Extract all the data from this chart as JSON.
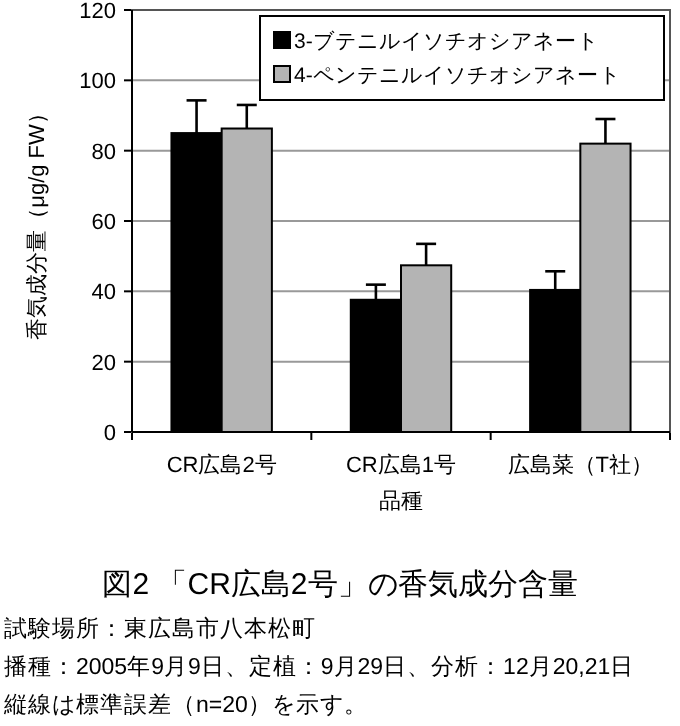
{
  "chart_data": {
    "type": "bar",
    "title": "図2 「CR広島2号」の香気成分含量",
    "xlabel": "品種",
    "ylabel": "香気成分量（μg/g FW）",
    "categories": [
      "CR広島2号",
      "CR広島1号",
      "広島菜（T社）"
    ],
    "series": [
      {
        "name": "3-ブテニルイソチオシアネート",
        "color": "#000000",
        "values": [
          85,
          37.6,
          40.4
        ],
        "errors": [
          [
            85,
            94.3
          ],
          [
            37.6,
            41.9
          ],
          [
            40.4,
            45.7
          ]
        ]
      },
      {
        "name": "4-ペンテニルイソチオシアネート",
        "color": "#b4b4b4",
        "values": [
          86.3,
          47.4,
          82
        ],
        "errors": [
          [
            86.3,
            93
          ],
          [
            47.4,
            53.5
          ],
          [
            82,
            89
          ]
        ]
      }
    ],
    "ylim": [
      0,
      120
    ],
    "yticks": [
      0,
      20,
      40,
      60,
      80,
      100,
      120
    ],
    "grid": "y",
    "legend": "top right",
    "annotations": [
      "試験場所：東広島市八本松町",
      "播種：2005年9月9日、定植：9月29日、分析：12月20,21日",
      "縦線は標準誤差（n=20）を示す。"
    ]
  }
}
